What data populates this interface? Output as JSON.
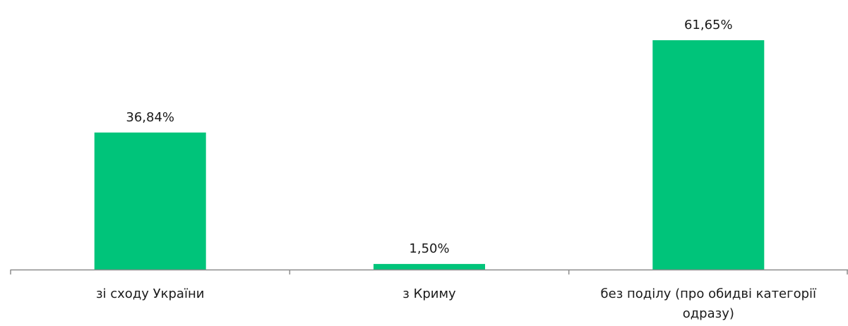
{
  "chart_data": {
    "type": "bar",
    "categories": [
      [
        "зі сходу України"
      ],
      [
        "з Криму"
      ],
      [
        "без поділу (про обидві категорії",
        "одразу)"
      ]
    ],
    "values": [
      36.84,
      1.5,
      61.65
    ],
    "data_labels": [
      "36,84%",
      "1,50%",
      "61,65%"
    ],
    "ylim": [
      0,
      61.65
    ],
    "grid": false,
    "legend": "none",
    "bar_color": "#00c47a",
    "axis_color": "#8c8c8c"
  }
}
